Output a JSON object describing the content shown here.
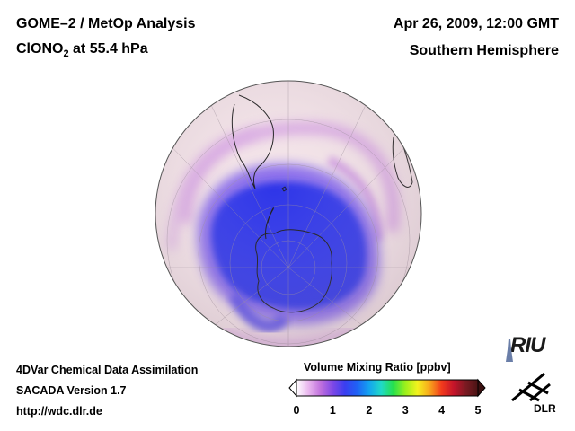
{
  "header": {
    "title_line1": "GOME–2 / MetOp Analysis",
    "title_line2_prefix": "ClONO",
    "title_line2_sub": "2",
    "title_line2_suffix": " at 55.4 hPa",
    "datetime": "Apr 26, 2009, 12:00 GMT",
    "region": "Southern Hemisphere"
  },
  "footer": {
    "line1": "4DVar Chemical Data Assimilation",
    "line2": "SACADA Version 1.7",
    "line3": "http://wdc.dlr.de"
  },
  "colorbar": {
    "title": "Volume Mixing Ratio [ppbv]",
    "ticks": [
      "0",
      "1",
      "2",
      "3",
      "4",
      "5"
    ],
    "colors": [
      "#ffffff",
      "#e9b6ee",
      "#c070dd",
      "#7e48e6",
      "#3a3ef0",
      "#1f62f5",
      "#14a3f0",
      "#20d9c8",
      "#27e04c",
      "#9bf01c",
      "#f3f21e",
      "#f7a61c",
      "#f23a1c",
      "#c4142a",
      "#7a1a22",
      "#4a1414"
    ]
  },
  "logos": {
    "riu": "RIU",
    "dlr": "DLR"
  },
  "map_colors": {
    "ocean": "#f3e3e8",
    "low": "#2f36e8",
    "mid": "#7a5cec",
    "band": "#d39ae3",
    "outline": "#1a1a1a",
    "grid": "#9a8c98"
  }
}
